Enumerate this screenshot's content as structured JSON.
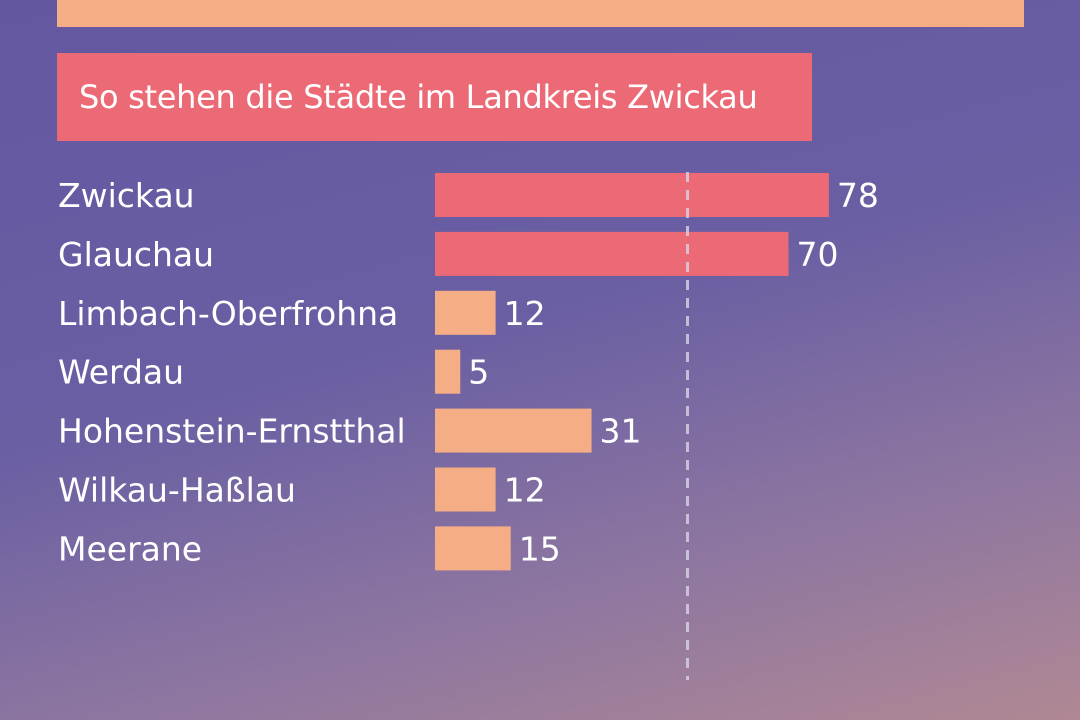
{
  "colors": {
    "background_top": "#6357a1",
    "background_bottom": "#b08894",
    "highlight_bar": "#ec6a76",
    "normal_bar": "#f5ad85",
    "title_box": "#ec6a76",
    "reference_line": "#d9d4e6",
    "text": "#ffffff"
  },
  "chart_data": {
    "type": "bar",
    "orientation": "horizontal",
    "title": "So stehen die Städte im Landkreis Zwickau",
    "categories": [
      "Zwickau",
      "Glauchau",
      "Limbach-Oberfrohna",
      "Werdau",
      "Hohenstein-Ernstthal",
      "Wilkau-Haßlau",
      "Meerane"
    ],
    "values": [
      78,
      70,
      12,
      5,
      31,
      12,
      15
    ],
    "highlighted": [
      true,
      true,
      false,
      false,
      false,
      false,
      false
    ],
    "xlim": [
      0,
      78
    ],
    "reference_line": 50,
    "grid": false,
    "data_labels": true
  }
}
